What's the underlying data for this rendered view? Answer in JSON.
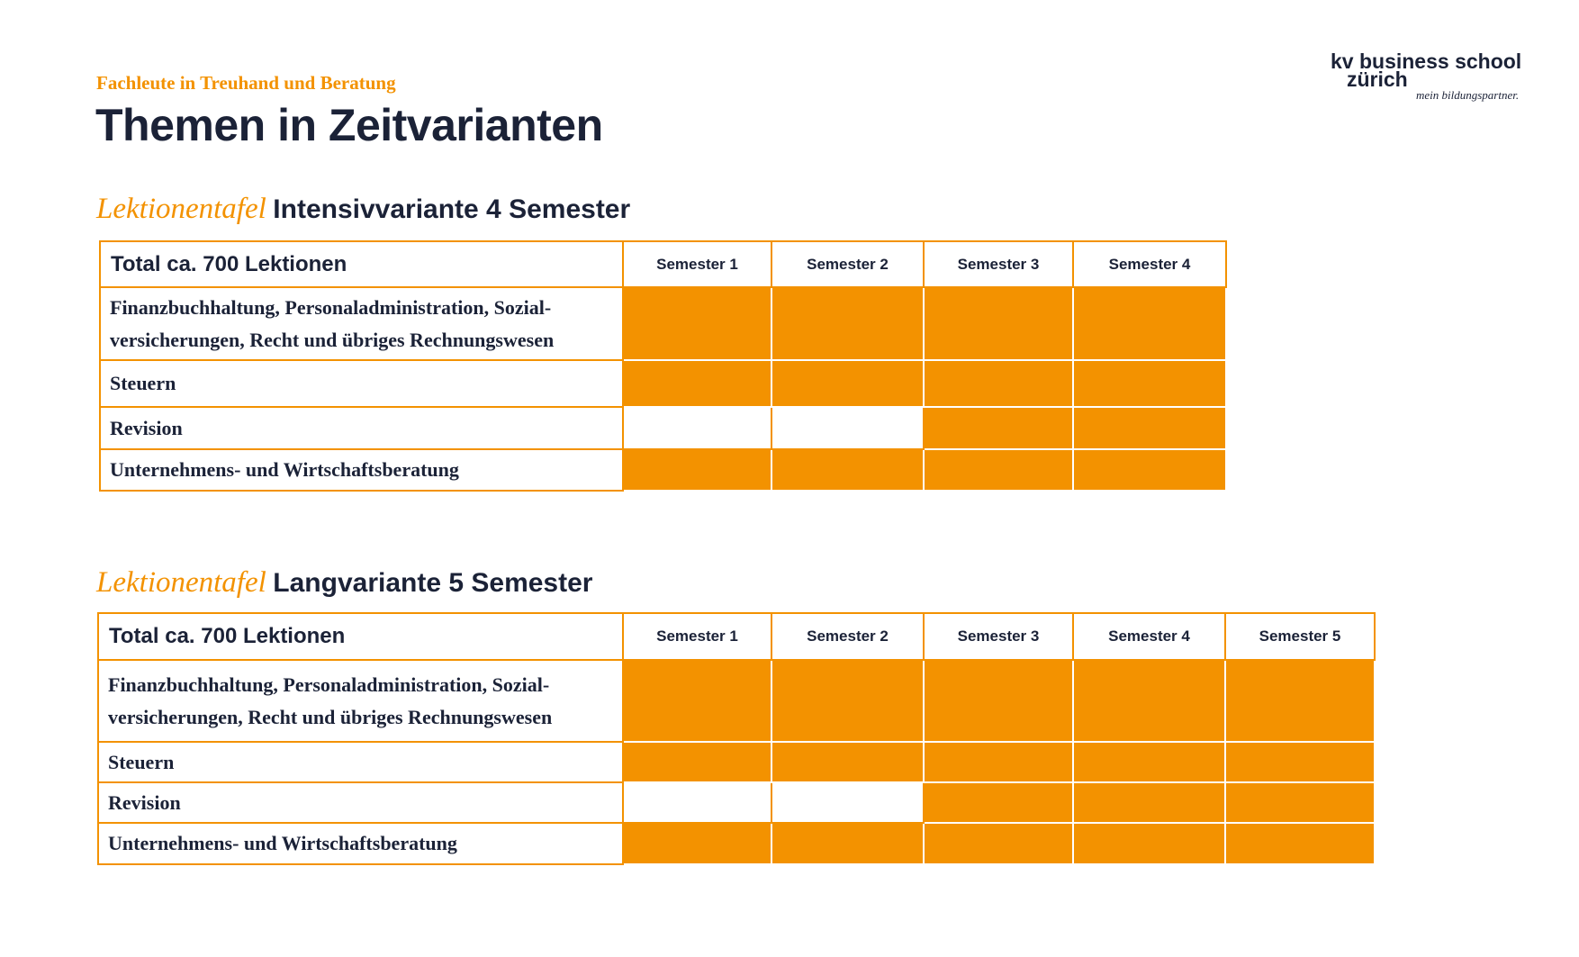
{
  "header": {
    "kicker": "Fachleute in Treuhand und Beratung",
    "title": "Themen in Zeitvarianten"
  },
  "logo": {
    "line1": "kv business school",
    "line2": "zürich",
    "tagline": "mein bildungspartner."
  },
  "colors": {
    "accent": "#f39200",
    "text": "#1b2237"
  },
  "tables": [
    {
      "heading_prefix": "Lektionentafel",
      "heading": "Intensivvariante 4 Semester",
      "total": "Total ca. 700 Lektionen",
      "semesters": [
        "Semester 1",
        "Semester 2",
        "Semester 3",
        "Semester 4"
      ],
      "rows": [
        {
          "topic": "Finanzbuchhaltung, Personaladministration, Sozial-versicherungen, Recht und übriges Rechnungswesen",
          "active": [
            true,
            true,
            true,
            true
          ]
        },
        {
          "topic": "Steuern",
          "active": [
            true,
            true,
            true,
            true
          ]
        },
        {
          "topic": "Revision",
          "active": [
            false,
            false,
            true,
            true
          ]
        },
        {
          "topic": "Unternehmens- und Wirtschaftsberatung",
          "active": [
            true,
            true,
            true,
            true
          ]
        }
      ]
    },
    {
      "heading_prefix": "Lektionentafel",
      "heading": "Langvariante 5 Semester",
      "total": "Total ca. 700 Lektionen",
      "semesters": [
        "Semester 1",
        "Semester 2",
        "Semester 3",
        "Semester 4",
        "Semester 5"
      ],
      "rows": [
        {
          "topic": "Finanzbuchhaltung, Personaladministration, Sozial-versicherungen, Recht und übriges Rechnungswesen",
          "active": [
            true,
            true,
            true,
            true,
            true
          ]
        },
        {
          "topic": "Steuern",
          "active": [
            true,
            true,
            true,
            true,
            true
          ]
        },
        {
          "topic": "Revision",
          "active": [
            false,
            false,
            true,
            true,
            true
          ]
        },
        {
          "topic": "Unternehmens- und Wirtschaftsberatung",
          "active": [
            true,
            true,
            true,
            true,
            true
          ]
        }
      ]
    }
  ]
}
